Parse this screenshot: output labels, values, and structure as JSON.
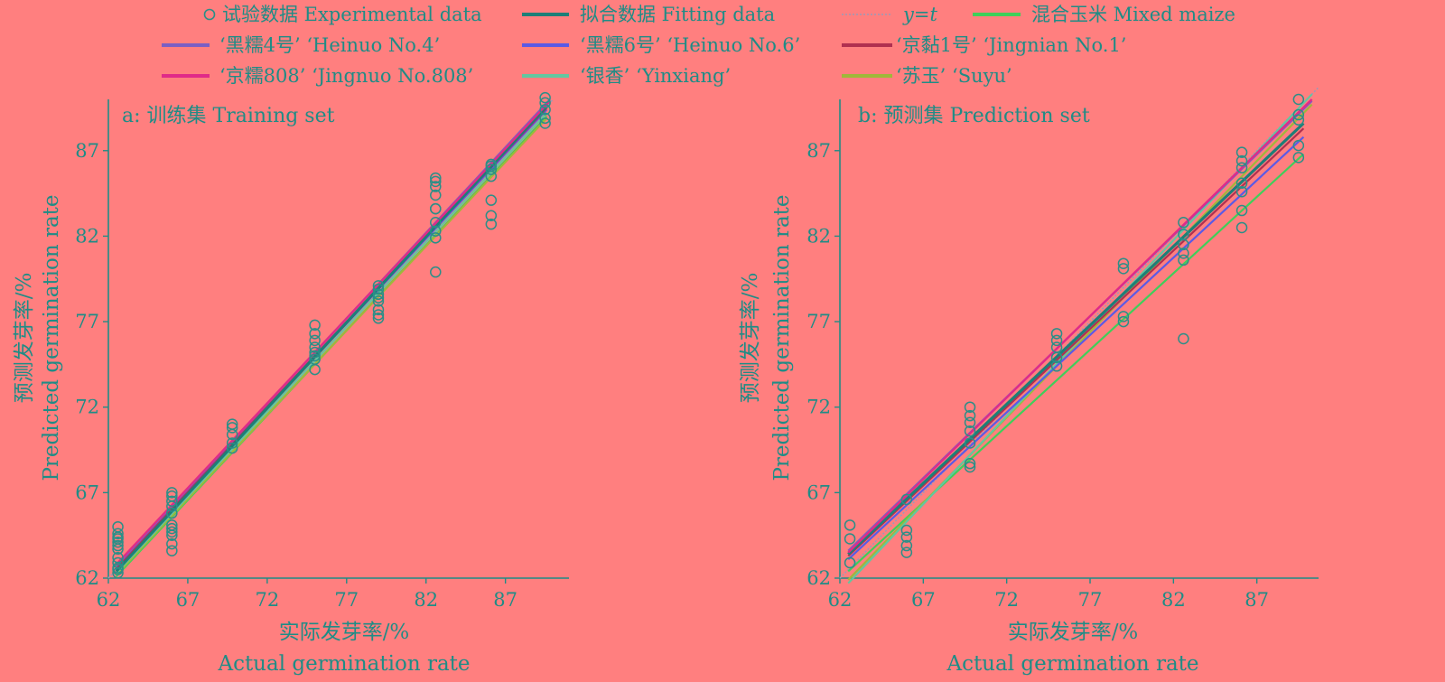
{
  "colors": {
    "background": "#ff7f7f",
    "axis": "#1f8c86",
    "text": "#1f8c86",
    "experimental_marker": "#2a8f88",
    "fitting": "#1d7f78",
    "yt": "#9a9ab8",
    "mixed": "#3fcf5a",
    "heinuo4": "#7a5fc4",
    "heinuo6": "#5a5ae6",
    "jingnian1": "#b03050",
    "jingnuo808": "#e02a88",
    "yinxiang": "#62c7a0",
    "suyu": "#9fb83a"
  },
  "legend": {
    "experimental": "试验数据 Experimental data",
    "fitting": "拟合数据 Fitting data",
    "yt": "y=t",
    "mixed": "混合玉米 Mixed maize",
    "heinuo4": "‘黑糯4号’ ‘Heinuo No.4’",
    "heinuo6": "‘黑糯6号’ ‘Heinuo No.6’",
    "jingnian1": "‘京黏1号’ ‘Jingnian No.1’",
    "jingnuo808": "‘京糯808’ ‘Jingnuo No.808’",
    "yinxiang": "‘银香’ ‘Yinxiang’",
    "suyu": "‘苏玉’ ‘Suyu’"
  },
  "chart_data": [
    {
      "type": "scatter",
      "panel_label": "a: 训练集 Training set",
      "xlabel": "实际发芽率/%",
      "xlabel_en": "Actual germination rate",
      "ylabel": "预测发芽率/%",
      "ylabel_en": "Predicted germination rate",
      "xlim": [
        62,
        91
      ],
      "ylim": [
        62,
        90
      ],
      "xticks": [
        62,
        67,
        72,
        77,
        82,
        87
      ],
      "yticks": [
        62,
        67,
        72,
        77,
        82,
        87
      ],
      "experimental_data": {
        "x": [
          62.6,
          62.6,
          62.6,
          62.6,
          62.6,
          62.6,
          62.6,
          62.6,
          62.6,
          62.6,
          62.6,
          62.6,
          66.0,
          66.0,
          66.0,
          66.0,
          66.0,
          66.0,
          66.0,
          66.0,
          66.0,
          66.0,
          66.0,
          69.8,
          69.8,
          69.8,
          69.8,
          69.8,
          75.0,
          75.0,
          75.0,
          75.0,
          75.0,
          75.0,
          75.0,
          75.0,
          79.0,
          79.0,
          79.0,
          79.0,
          79.0,
          79.0,
          79.0,
          79.0,
          82.6,
          82.6,
          82.6,
          82.6,
          82.6,
          82.6,
          82.6,
          82.6,
          82.6,
          82.6,
          86.1,
          86.1,
          86.1,
          86.1,
          86.1,
          86.1,
          86.1,
          89.5,
          89.5,
          89.5,
          89.5,
          89.5
        ],
        "y": [
          62.3,
          62.6,
          62.9,
          63.2,
          63.7,
          64.1,
          64.3,
          64.4,
          64.6,
          65.0,
          62.5,
          63.9,
          63.6,
          64.0,
          64.5,
          64.9,
          65.1,
          65.8,
          66.2,
          66.5,
          66.8,
          67.0,
          64.7,
          69.6,
          69.9,
          70.4,
          70.8,
          71.0,
          74.2,
          74.8,
          75.0,
          75.2,
          75.5,
          75.9,
          76.3,
          76.8,
          77.2,
          77.4,
          77.7,
          78.2,
          78.4,
          78.6,
          78.9,
          79.1,
          79.9,
          81.9,
          82.3,
          82.8,
          83.6,
          84.4,
          84.9,
          85.2,
          85.4,
          83.6,
          82.7,
          83.2,
          84.1,
          85.5,
          85.9,
          86.1,
          86.2,
          88.6,
          88.9,
          89.4,
          89.8,
          90.1
        ]
      },
      "lines": {
        "fitting": {
          "x": [
            62.5,
            89.6
          ],
          "y": [
            62.4,
            89.6
          ]
        },
        "yt": {
          "x": [
            62,
            90
          ],
          "y": [
            62,
            90
          ]
        },
        "mixed": {
          "x": [
            62.5,
            89.6
          ],
          "y": [
            62.1,
            89.0
          ]
        },
        "heinuo4": {
          "x": [
            62.5,
            89.8
          ],
          "y": [
            62.7,
            90.0
          ]
        },
        "heinuo6": {
          "x": [
            62.5,
            89.6
          ],
          "y": [
            62.5,
            89.4
          ]
        },
        "jingnian1": {
          "x": [
            62.5,
            89.6
          ],
          "y": [
            62.6,
            89.5
          ]
        },
        "jingnuo808": {
          "x": [
            62.5,
            89.8
          ],
          "y": [
            62.8,
            89.9
          ]
        },
        "yinxiang": {
          "x": [
            62.5,
            89.6
          ],
          "y": [
            62.3,
            89.2
          ]
        },
        "suyu": {
          "x": [
            62.5,
            89.6
          ],
          "y": [
            62.2,
            88.9
          ]
        }
      }
    },
    {
      "type": "scatter",
      "panel_label": "b: 预测集 Prediction set",
      "xlabel": "实际发芽率/%",
      "xlabel_en": "Actual germination rate",
      "ylabel": "预测发芽率/%",
      "ylabel_en": "Predicted germination rate",
      "xlim": [
        62,
        90.7
      ],
      "ylim": [
        62,
        90
      ],
      "xticks": [
        62,
        67,
        72,
        77,
        82,
        87
      ],
      "yticks": [
        62,
        67,
        72,
        77,
        82,
        87
      ],
      "experimental_data": {
        "x": [
          62.6,
          62.6,
          62.6,
          66.0,
          66.0,
          66.0,
          66.0,
          66.0,
          69.8,
          69.8,
          69.8,
          69.8,
          69.8,
          69.8,
          69.8,
          75.0,
          75.0,
          75.0,
          75.0,
          75.0,
          79.0,
          79.0,
          79.0,
          79.0,
          82.6,
          82.6,
          82.6,
          82.6,
          82.6,
          82.6,
          86.1,
          86.1,
          86.1,
          86.1,
          86.1,
          86.1,
          86.1,
          89.5,
          89.5,
          89.5,
          89.5,
          89.5
        ],
        "y": [
          62.9,
          64.3,
          65.1,
          63.5,
          63.9,
          64.4,
          64.8,
          66.6,
          68.5,
          68.7,
          69.9,
          70.6,
          71.1,
          71.5,
          72.0,
          74.4,
          74.9,
          75.5,
          75.9,
          76.3,
          77.0,
          77.3,
          80.1,
          80.4,
          76.0,
          80.6,
          81.0,
          81.5,
          82.1,
          82.8,
          82.5,
          83.5,
          84.6,
          85.1,
          86.0,
          86.4,
          86.9,
          86.6,
          87.3,
          88.8,
          89.1,
          90.0
        ]
      },
      "lines": {
        "fitting": {
          "x": [
            62.5,
            89.8
          ],
          "y": [
            63.4,
            88.6
          ]
        },
        "yt": {
          "x": [
            62,
            90.7
          ],
          "y": [
            62,
            90.7
          ]
        },
        "mixed": {
          "x": [
            62.5,
            89.8
          ],
          "y": [
            62.4,
            86.8
          ]
        },
        "heinuo4": {
          "x": [
            62.5,
            90.3
          ],
          "y": [
            63.6,
            89.9
          ]
        },
        "heinuo6": {
          "x": [
            62.5,
            89.8
          ],
          "y": [
            63.1,
            87.8
          ]
        },
        "jingnian1": {
          "x": [
            62.5,
            89.8
          ],
          "y": [
            63.3,
            88.3
          ]
        },
        "jingnuo808": {
          "x": [
            62.5,
            90.3
          ],
          "y": [
            63.5,
            90.0
          ]
        },
        "yinxiang": {
          "x": [
            62.5,
            90.3
          ],
          "y": [
            61.7,
            90.3
          ]
        },
        "suyu": {
          "x": [
            62.5,
            90.3
          ],
          "y": [
            61.9,
            89.7
          ]
        }
      }
    }
  ]
}
